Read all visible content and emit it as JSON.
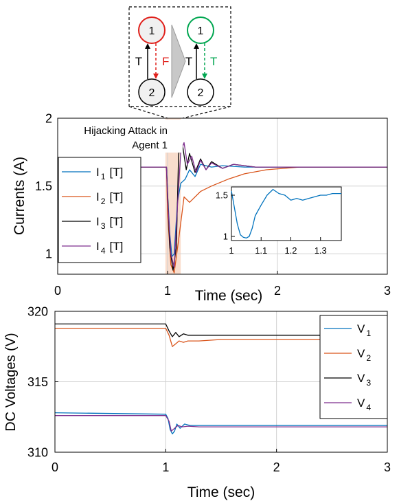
{
  "schematic": {
    "before": {
      "node_top": "1",
      "node_bottom": "2",
      "link_up_label": "T",
      "link_down_label": "F"
    },
    "after": {
      "node_top": "1",
      "node_bottom": "2",
      "link_up_label": "T",
      "link_down_label": "T"
    },
    "colors": {
      "attacked_node": "#e0201b",
      "recovered_node": "#00a650",
      "false_link": "#e0201b",
      "true_link": "#00a650",
      "arrow_fill": "#c8c8c8"
    }
  },
  "chart_data": [
    {
      "type": "line",
      "title": "",
      "xlabel": "Time (sec)",
      "ylabel": "Currents (A)",
      "xlim": [
        0,
        3
      ],
      "ylim": [
        0.85,
        2.0
      ],
      "xticks": [
        0,
        1,
        2,
        3
      ],
      "yticks": [
        1,
        1.5,
        2
      ],
      "ytick_labels": [
        "1",
        "1.5",
        "2"
      ],
      "grid": true,
      "legend_position": "left",
      "annotation": {
        "text_line1": "Hijacking Attack in",
        "text_line2": "Agent 1",
        "x_start": 0.98,
        "x_end": 1.12,
        "color": "#f7d5c0"
      },
      "series": [
        {
          "name": "I",
          "subscript": "1",
          "suffix": "[T]",
          "color": "#0072bd",
          "x": [
            0,
            0.99,
            1.0,
            1.02,
            1.04,
            1.06,
            1.09,
            1.12,
            1.16,
            1.2,
            1.25,
            1.3,
            1.4,
            1.5,
            1.7,
            2.0,
            3.0
          ],
          "y": [
            1.64,
            1.64,
            1.45,
            1.15,
            0.98,
            1.0,
            1.38,
            1.52,
            1.55,
            1.62,
            1.57,
            1.66,
            1.64,
            1.65,
            1.64,
            1.64,
            1.64
          ]
        },
        {
          "name": "I",
          "subscript": "2",
          "suffix": "[T]",
          "color": "#d95319",
          "x": [
            0,
            0.99,
            1.0,
            1.03,
            1.06,
            1.1,
            1.15,
            1.2,
            1.3,
            1.4,
            1.55,
            1.7,
            1.9,
            2.2,
            2.5,
            3.0
          ],
          "y": [
            1.64,
            1.64,
            1.3,
            0.92,
            0.86,
            1.1,
            1.42,
            1.38,
            1.46,
            1.5,
            1.55,
            1.59,
            1.62,
            1.64,
            1.64,
            1.64
          ]
        },
        {
          "name": "I",
          "subscript": "3",
          "suffix": "[T]",
          "color": "#000000",
          "x": [
            0,
            0.99,
            1.0,
            1.02,
            1.05,
            1.08,
            1.1,
            1.12,
            1.14,
            1.17,
            1.2,
            1.25,
            1.3,
            1.35,
            1.4,
            1.5,
            1.6,
            1.8,
            2.0,
            3.0
          ],
          "y": [
            1.64,
            1.64,
            1.45,
            1.05,
            0.88,
            1.05,
            1.72,
            1.88,
            1.78,
            1.62,
            1.74,
            1.6,
            1.7,
            1.62,
            1.68,
            1.63,
            1.66,
            1.64,
            1.64,
            1.64
          ]
        },
        {
          "name": "I",
          "subscript": "4",
          "suffix": "[T]",
          "color": "#7e2f8e",
          "x": [
            0,
            0.99,
            1.0,
            1.03,
            1.06,
            1.09,
            1.12,
            1.15,
            1.18,
            1.22,
            1.26,
            1.3,
            1.35,
            1.4,
            1.5,
            1.6,
            1.8,
            2.0,
            3.0
          ],
          "y": [
            1.64,
            1.64,
            1.4,
            1.0,
            0.9,
            1.35,
            1.75,
            1.82,
            1.66,
            1.72,
            1.6,
            1.69,
            1.62,
            1.67,
            1.63,
            1.66,
            1.64,
            1.64,
            1.64
          ]
        }
      ]
    },
    {
      "type": "line",
      "title": "",
      "xlabel": "",
      "ylabel": "",
      "xlim": [
        1.0,
        1.37
      ],
      "ylim": [
        0.95,
        1.6
      ],
      "xticks": [
        1,
        1.1,
        1.2,
        1.3
      ],
      "yticks": [
        1,
        1.5
      ],
      "ytick_labels": [
        "1",
        "1.5"
      ],
      "grid": false,
      "series": [
        {
          "name": "",
          "color": "#0072bd",
          "x": [
            1.0,
            1.01,
            1.02,
            1.03,
            1.04,
            1.05,
            1.06,
            1.07,
            1.08,
            1.1,
            1.12,
            1.14,
            1.16,
            1.18,
            1.2,
            1.22,
            1.24,
            1.26,
            1.28,
            1.3,
            1.32,
            1.34,
            1.37
          ],
          "y": [
            1.55,
            1.35,
            1.15,
            1.02,
            0.99,
            0.98,
            1.0,
            1.1,
            1.25,
            1.38,
            1.5,
            1.57,
            1.52,
            1.5,
            1.44,
            1.46,
            1.44,
            1.46,
            1.48,
            1.5,
            1.5,
            1.52,
            1.52
          ]
        }
      ]
    },
    {
      "type": "line",
      "title": "",
      "xlabel": "Time (sec)",
      "ylabel": "DC Voltages (V)",
      "xlim": [
        0,
        3
      ],
      "ylim": [
        310,
        320
      ],
      "xticks": [
        0,
        1,
        2,
        3
      ],
      "yticks": [
        310,
        315,
        320
      ],
      "ytick_labels": [
        "310",
        "315",
        "320"
      ],
      "grid": true,
      "legend_position": "right",
      "series": [
        {
          "name": "V",
          "subscript": "1",
          "color": "#0072bd",
          "x": [
            0,
            1.0,
            1.02,
            1.04,
            1.06,
            1.08,
            1.1,
            1.13,
            1.17,
            1.22,
            1.3,
            1.5,
            2.0,
            3.0
          ],
          "y": [
            312.8,
            312.7,
            312.4,
            311.6,
            311.3,
            311.5,
            312.0,
            311.7,
            312.0,
            311.9,
            311.9,
            311.9,
            311.9,
            311.9
          ]
        },
        {
          "name": "V",
          "subscript": "2",
          "color": "#d95319",
          "x": [
            0,
            1.0,
            1.03,
            1.06,
            1.09,
            1.12,
            1.16,
            1.2,
            1.3,
            1.5,
            2.0,
            3.0
          ],
          "y": [
            318.8,
            318.8,
            318.3,
            317.5,
            317.7,
            317.9,
            317.8,
            317.9,
            317.9,
            318.0,
            318.0,
            318.0
          ]
        },
        {
          "name": "V",
          "subscript": "3",
          "color": "#000000",
          "x": [
            0,
            1.0,
            1.03,
            1.06,
            1.09,
            1.12,
            1.16,
            1.2,
            1.3,
            1.5,
            2.0,
            3.0
          ],
          "y": [
            319.1,
            319.1,
            318.6,
            318.2,
            318.5,
            318.2,
            318.4,
            318.3,
            318.3,
            318.3,
            318.3,
            318.3
          ]
        },
        {
          "name": "V",
          "subscript": "4",
          "color": "#7e2f8e",
          "x": [
            0,
            1.0,
            1.03,
            1.05,
            1.08,
            1.11,
            1.15,
            1.2,
            1.3,
            1.5,
            2.0,
            3.0
          ],
          "y": [
            312.6,
            312.6,
            312.2,
            311.5,
            311.7,
            311.9,
            311.8,
            311.85,
            311.8,
            311.8,
            311.8,
            311.8
          ]
        }
      ]
    }
  ]
}
